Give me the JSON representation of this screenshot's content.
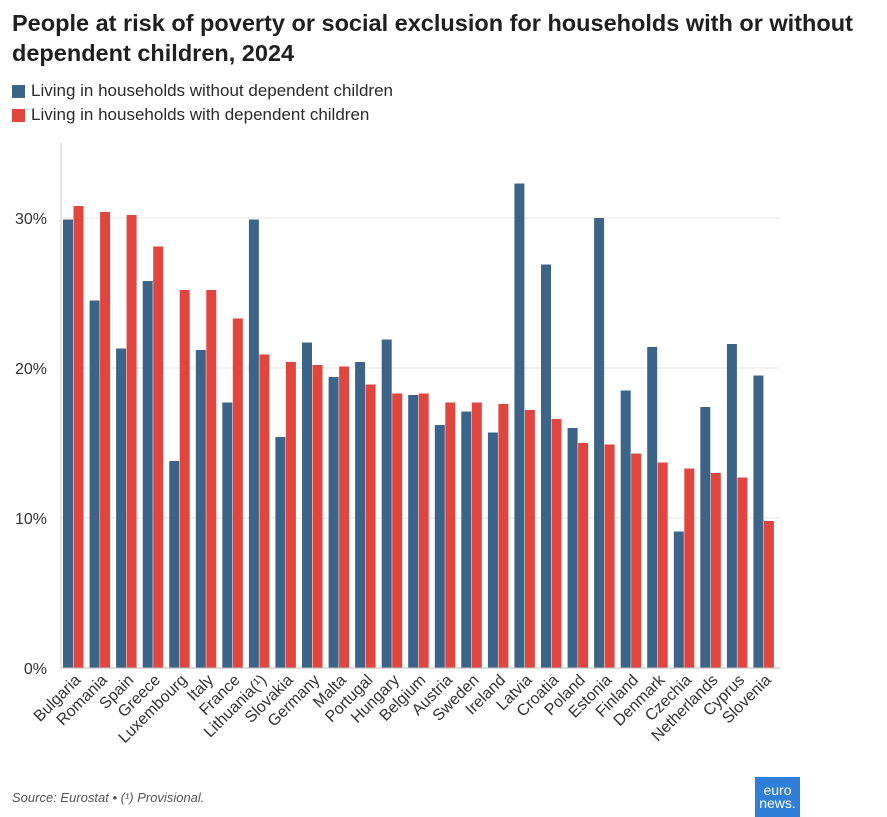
{
  "title": "People at risk of poverty or social exclusion for households with or without dependent children, 2024",
  "colors": {
    "without": "#3b6488",
    "with": "#e0463d",
    "grid": "#e6e6e6",
    "axis": "#c8c8c8"
  },
  "legend": [
    {
      "label": "Living in households without dependent children",
      "color": "#3b6488"
    },
    {
      "label": "Living in households with dependent children",
      "color": "#e0463d"
    }
  ],
  "footer": "Source: Eurostat • (¹) Provisional.",
  "logo": {
    "line1": "euro",
    "line2": "news."
  },
  "chart_data": {
    "type": "bar",
    "title": "People at risk of poverty or social exclusion for households with or without dependent children, 2024",
    "categories": [
      "Bulgaria",
      "Romania",
      "Spain",
      "Greece",
      "Luxembourg",
      "Italy",
      "France",
      "Lithuania(¹)",
      "Slovakia",
      "Germany",
      "Malta",
      "Portugal",
      "Hungary",
      "Belgium",
      "Austria",
      "Sweden",
      "Ireland",
      "Latvia",
      "Croatia",
      "Poland",
      "Estonia",
      "Finland",
      "Denmark",
      "Czechia",
      "Netherlands",
      "Cyprus",
      "Slovenia"
    ],
    "series": [
      {
        "name": "Living in households without dependent children",
        "values": [
          29.9,
          24.5,
          21.3,
          25.8,
          13.8,
          21.2,
          17.7,
          29.9,
          15.4,
          21.7,
          19.4,
          20.4,
          21.9,
          18.2,
          16.2,
          17.1,
          15.7,
          32.3,
          26.9,
          16.0,
          30.0,
          18.5,
          21.4,
          9.1,
          17.4,
          21.6,
          19.5
        ]
      },
      {
        "name": "Living in households with dependent children",
        "values": [
          30.8,
          30.4,
          30.2,
          28.1,
          25.2,
          25.2,
          23.3,
          20.9,
          20.4,
          20.2,
          20.1,
          18.9,
          18.3,
          18.3,
          17.7,
          17.7,
          17.6,
          17.2,
          16.6,
          15.0,
          14.9,
          14.3,
          13.7,
          13.3,
          13.0,
          12.7,
          9.8
        ]
      }
    ],
    "yticks": [
      "0%",
      "10%",
      "20%",
      "30%"
    ],
    "ylim": [
      0,
      35
    ],
    "grid": true,
    "legend_position": "top-left"
  }
}
